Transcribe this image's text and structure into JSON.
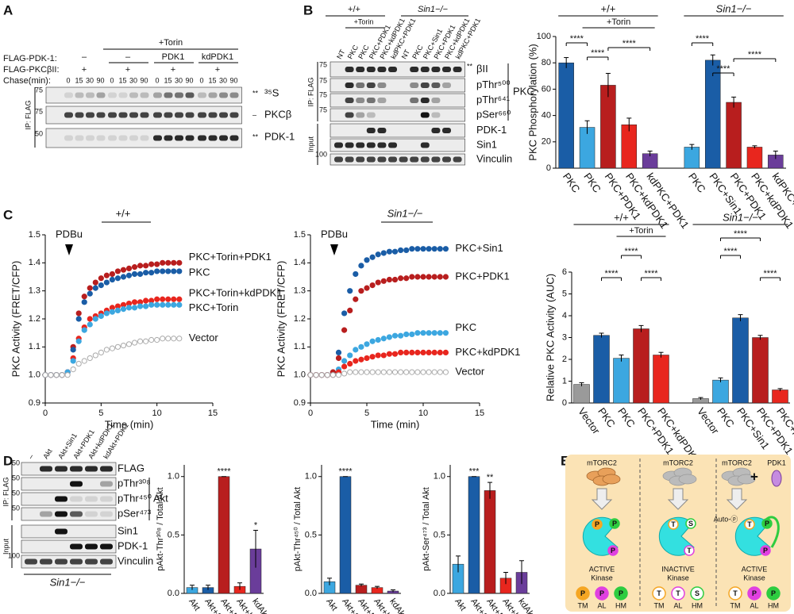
{
  "panel_letters": [
    "A",
    "B",
    "C",
    "D",
    "E"
  ],
  "blot_a": {
    "title": "+Torin",
    "pdk_label": "FLAG-PDK-1:",
    "pdk_groups": [
      "–",
      "–",
      "PDK1",
      "kdPDK1"
    ],
    "pkc_label": "FLAG-PKCβII:",
    "pkc_marks": [
      "+",
      "+",
      "+",
      "+"
    ],
    "chase_label": "Chase(min):",
    "chase": [
      "0",
      "15",
      "30",
      "90"
    ],
    "ip": "IP: FLAG",
    "mw": [
      "75",
      "75",
      "50"
    ],
    "markers": [
      "**",
      "–",
      "**"
    ],
    "bands": [
      "³⁵S",
      "PKCβ",
      "PDK-1"
    ]
  },
  "blot_b": {
    "groups": [
      "+/+",
      "Sin1−/−"
    ],
    "torin": "+Torin",
    "lanes": [
      "NT",
      "PKC",
      "PKC",
      "PKC+PDK1",
      "PKC+kdPDK1",
      "kdPKC+PDK1",
      "NT",
      "PKC",
      "PKC+Sin1",
      "PKC+PDK1",
      "PKC+kdPDK1",
      "kdPKC+PDK1"
    ],
    "rows": [
      "βII",
      "pThr⁵⁰⁰",
      "pThr⁶⁴¹",
      "pSer⁶⁶⁰",
      "PDK-1",
      "Sin1",
      "Vinculin"
    ],
    "markers": "**",
    "bracket": "PKC",
    "ip": "IP: FLAG",
    "input": "Input",
    "mw": [
      "75",
      "75",
      "75",
      "75",
      "100"
    ]
  },
  "blot_d": {
    "lanes": [
      "–",
      "Akt",
      "Akt+Sin1",
      "Akt+PDK1",
      "Akt+kdPDK1",
      "kdAkt+PDK1"
    ],
    "rows": [
      "FLAG",
      "pThr³⁰⁸",
      "pThr⁴⁵⁰",
      "pSer⁴⁷³",
      "Sin1",
      "PDK-1",
      "Vinculin"
    ],
    "bracket": "Akt",
    "ip": "IP: FLAG",
    "input": "Input",
    "genotype": "Sin1−/−",
    "mw": [
      "50",
      "50",
      "50",
      "50",
      "100"
    ]
  },
  "chart_data": [
    {
      "type": "bar",
      "ylabel": "PKC Phosphorylation (%)",
      "groups": [
        "+/+",
        "Sin1−/−"
      ],
      "subgroup": "+Torin",
      "categories": [
        "PKC",
        "PKC",
        "PKC+PDK1",
        "PKC+kdPDK1",
        "kdPKC+PDK1",
        "PKC",
        "PKC+Sin1",
        "PKC+PDK1",
        "PKC+kdPDK1",
        "kdPKC+PDK1"
      ],
      "values": [
        80,
        31,
        63,
        33,
        11,
        16,
        82,
        50,
        16,
        10
      ],
      "errors": [
        4,
        5,
        9,
        5,
        2,
        2,
        4,
        4,
        1,
        3
      ],
      "colors": [
        "#1a5da6",
        "#3ca7e0",
        "#b81e1e",
        "#e8261e",
        "#6a3d9a",
        "#3ca7e0",
        "#1a5da6",
        "#b81e1e",
        "#e8261e",
        "#6a3d9a"
      ],
      "ylim": [
        0,
        100
      ],
      "yticks": [
        0,
        20,
        40,
        60,
        80,
        100
      ],
      "annotations": [
        "****",
        "****",
        "****",
        "****",
        "****",
        "****"
      ]
    },
    {
      "type": "scatter",
      "ylabel": "PKC Activity (FRET/CFP)",
      "xlabel": "Time (min)",
      "group": "+/+",
      "stimulus": "PDBu",
      "x": [
        0,
        0.5,
        1,
        1.5,
        2,
        2.5,
        3,
        3.5,
        4,
        4.5,
        5,
        5.5,
        6,
        6.5,
        7,
        7.5,
        8,
        8.5,
        9,
        9.5,
        10,
        10.5,
        11,
        11.5,
        12
      ],
      "xlim": [
        0,
        15
      ],
      "xticks": [
        0,
        5,
        10,
        15
      ],
      "ylim": [
        0.9,
        1.5
      ],
      "yticks": [
        0.9,
        {
          "value": 1,
          "label": "1.0"
        },
        1.1,
        1.2,
        1.3,
        1.4,
        1.5
      ],
      "series": [
        {
          "name": "PKC+Torin+PDK1",
          "color": "#b81e1e",
          "values": [
            1,
            1,
            1,
            1,
            1.01,
            1.1,
            1.22,
            1.28,
            1.31,
            1.33,
            1.345,
            1.355,
            1.36,
            1.37,
            1.375,
            1.38,
            1.385,
            1.39,
            1.39,
            1.395,
            1.395,
            1.4,
            1.4,
            1.4,
            1.4
          ]
        },
        {
          "name": "PKC",
          "color": "#1a5da6",
          "values": [
            1,
            1,
            1,
            1,
            1.01,
            1.09,
            1.2,
            1.26,
            1.29,
            1.31,
            1.32,
            1.33,
            1.34,
            1.345,
            1.35,
            1.355,
            1.36,
            1.36,
            1.365,
            1.365,
            1.37,
            1.37,
            1.37,
            1.37,
            1.37
          ]
        },
        {
          "name": "PKC+Torin+kdPDK1",
          "color": "#e8261e",
          "values": [
            1,
            1,
            1,
            1,
            1.01,
            1.06,
            1.13,
            1.17,
            1.2,
            1.21,
            1.22,
            1.23,
            1.24,
            1.245,
            1.25,
            1.255,
            1.26,
            1.26,
            1.265,
            1.265,
            1.27,
            1.27,
            1.27,
            1.27,
            1.27
          ]
        },
        {
          "name": "PKC+Torin",
          "color": "#3ca7e0",
          "values": [
            1,
            1,
            1,
            1,
            1.01,
            1.05,
            1.12,
            1.16,
            1.18,
            1.2,
            1.21,
            1.22,
            1.225,
            1.23,
            1.235,
            1.24,
            1.24,
            1.245,
            1.245,
            1.25,
            1.25,
            1.25,
            1.25,
            1.25,
            1.25
          ]
        },
        {
          "name": "Vector",
          "color": "#aaaaaa",
          "open": true,
          "values": [
            1,
            1,
            1,
            1,
            1,
            1.02,
            1.04,
            1.05,
            1.06,
            1.07,
            1.08,
            1.09,
            1.095,
            1.1,
            1.105,
            1.11,
            1.115,
            1.12,
            1.12,
            1.125,
            1.125,
            1.13,
            1.13,
            1.13,
            1.13
          ]
        }
      ]
    },
    {
      "type": "scatter",
      "ylabel": "PKC Activity (FRET/CFP)",
      "xlabel": "Time (min)",
      "group": "Sin1−/−",
      "stimulus": "PDBu",
      "x": [
        0,
        0.5,
        1,
        1.5,
        2,
        2.5,
        3,
        3.5,
        4,
        4.5,
        5,
        5.5,
        6,
        6.5,
        7,
        7.5,
        8,
        8.5,
        9,
        9.5,
        10,
        10.5,
        11,
        11.5,
        12
      ],
      "xlim": [
        0,
        15
      ],
      "xticks": [
        0,
        5,
        10,
        15
      ],
      "ylim": [
        0.9,
        1.5
      ],
      "yticks": [
        0.9,
        {
          "value": 1,
          "label": "1.0"
        },
        1.1,
        1.2,
        1.3,
        1.4,
        1.5
      ],
      "series": [
        {
          "name": "PKC+Sin1",
          "color": "#1a5da6",
          "values": [
            1,
            1,
            1,
            1,
            1.01,
            1.08,
            1.22,
            1.3,
            1.36,
            1.39,
            1.41,
            1.42,
            1.43,
            1.435,
            1.44,
            1.44,
            1.445,
            1.445,
            1.45,
            1.45,
            1.45,
            1.45,
            1.45,
            1.45,
            1.45
          ]
        },
        {
          "name": "PKC+PDK1",
          "color": "#b81e1e",
          "values": [
            1,
            1,
            1,
            1,
            1.01,
            1.06,
            1.16,
            1.23,
            1.27,
            1.3,
            1.31,
            1.32,
            1.33,
            1.335,
            1.34,
            1.34,
            1.345,
            1.345,
            1.35,
            1.35,
            1.35,
            1.35,
            1.35,
            1.35,
            1.35
          ]
        },
        {
          "name": "PKC",
          "color": "#3ca7e0",
          "values": [
            1,
            1,
            1,
            1,
            1,
            1.02,
            1.05,
            1.07,
            1.09,
            1.1,
            1.11,
            1.12,
            1.125,
            1.13,
            1.135,
            1.14,
            1.14,
            1.145,
            1.145,
            1.15,
            1.15,
            1.15,
            1.15,
            1.15,
            1.15
          ]
        },
        {
          "name": "PKC+kdPDK1",
          "color": "#e8261e",
          "values": [
            1,
            1,
            1,
            1,
            1,
            1.01,
            1.03,
            1.04,
            1.05,
            1.055,
            1.06,
            1.065,
            1.07,
            1.07,
            1.075,
            1.075,
            1.08,
            1.08,
            1.08,
            1.08,
            1.08,
            1.08,
            1.08,
            1.08,
            1.08
          ]
        },
        {
          "name": "Vector",
          "color": "#aaaaaa",
          "open": true,
          "values": [
            1,
            1,
            1,
            1,
            1,
            1,
            1.005,
            1.01,
            1.01,
            1.01,
            1.01,
            1.01,
            1.01,
            1.01,
            1.01,
            1.01,
            1.01,
            1.01,
            1.01,
            1.01,
            1.01,
            1.01,
            1.01,
            1.01,
            1.01
          ]
        }
      ]
    },
    {
      "type": "bar",
      "ylabel": "Relative PKC Activity (AUC)",
      "groups": [
        "+/+",
        "Sin1−/−"
      ],
      "subgroup": "+Torin",
      "categories": [
        "Vector",
        "PKC",
        "PKC",
        "PKC+PDK1",
        "PKC+kdPDK1",
        "Vector",
        "PKC",
        "PKC+Sin1",
        "PKC+PDK1",
        "PKC+kdPDK1"
      ],
      "values": [
        0.85,
        3.1,
        2.05,
        3.4,
        2.2,
        0.2,
        1.05,
        3.9,
        3.0,
        0.6
      ],
      "errors": [
        0.08,
        0.1,
        0.15,
        0.15,
        0.12,
        0.05,
        0.1,
        0.15,
        0.1,
        0.06
      ],
      "colors": [
        "#9a9a9a",
        "#1a5da6",
        "#3ca7e0",
        "#b81e1e",
        "#e8261e",
        "#9a9a9a",
        "#3ca7e0",
        "#1a5da6",
        "#b81e1e",
        "#e8261e"
      ],
      "ylim": [
        0,
        6
      ],
      "yticks": [
        0,
        1,
        2,
        3,
        4,
        5,
        6
      ],
      "annotations": [
        "****",
        "****",
        "****",
        "****",
        "****",
        "****"
      ]
    },
    {
      "type": "bar",
      "ylabel": "pAkt-Thr³⁰⁸ / Total Akt",
      "categories": [
        "Akt",
        "Akt+Sin1",
        "Akt+PDK1",
        "Akt+kdPDK1",
        "kdAkt+PDK1"
      ],
      "values": [
        0.05,
        0.05,
        1.0,
        0.06,
        0.38
      ],
      "errors": [
        0.02,
        0.02,
        0,
        0.03,
        0.16
      ],
      "colors": [
        "#3ca7e0",
        "#1a5da6",
        "#b81e1e",
        "#e8261e",
        "#6a3d9a"
      ],
      "ylim": [
        0,
        1.1
      ],
      "yticks": [
        {
          "value": 0,
          "label": "0.0"
        },
        0.5,
        {
          "value": 1,
          "label": "1.0"
        }
      ],
      "annotations": [
        "****",
        "*"
      ]
    },
    {
      "type": "bar",
      "ylabel": "pAkt-Thr⁴⁵⁰ / Total Akt",
      "categories": [
        "Akt",
        "Akt+Sin1",
        "Akt+PDK1",
        "Akt+kdPDK1",
        "kdAkt+PDK1"
      ],
      "values": [
        0.1,
        1.0,
        0.07,
        0.05,
        0.02
      ],
      "errors": [
        0.03,
        0,
        0.01,
        0.01,
        0.01
      ],
      "colors": [
        "#3ca7e0",
        "#1a5da6",
        "#b81e1e",
        "#e8261e",
        "#6a3d9a"
      ],
      "ylim": [
        0,
        1.1
      ],
      "yticks": [
        {
          "value": 0,
          "label": "0.0"
        },
        0.5,
        {
          "value": 1,
          "label": "1.0"
        }
      ],
      "annotations": [
        "****"
      ]
    },
    {
      "type": "bar",
      "ylabel": "pAkt-Ser⁴⁷³ / Total Akt",
      "categories": [
        "Akt",
        "Akt+Sin1",
        "Akt+PDK1",
        "Akt+kdPDK1",
        "kdAkt+PDK1"
      ],
      "values": [
        0.25,
        1.0,
        0.88,
        0.13,
        0.18
      ],
      "errors": [
        0.07,
        0,
        0.07,
        0.05,
        0.1
      ],
      "colors": [
        "#3ca7e0",
        "#1a5da6",
        "#b81e1e",
        "#e8261e",
        "#6a3d9a"
      ],
      "ylim": [
        0,
        1.1
      ],
      "yticks": [
        {
          "value": 0,
          "label": "0.0"
        },
        0.5,
        {
          "value": 1,
          "label": "1.0"
        }
      ],
      "annotations": [
        "***",
        "**"
      ]
    }
  ],
  "diagram": {
    "complexes": [
      "mTORC2",
      "mTORC2",
      "mTORC2"
    ],
    "partner": "PDK1",
    "plus": "+",
    "auto": "Auto-ⓟ",
    "states": [
      "ACTIVE",
      "INACTIVE",
      "ACTIVE"
    ],
    "kinase": "Kinase",
    "sites": [
      [
        "P",
        "P",
        "P"
      ],
      [
        "T",
        "T",
        "S"
      ],
      [
        "T",
        "P",
        "P"
      ]
    ],
    "site_labels": [
      "TM",
      "AL",
      "HM"
    ]
  }
}
